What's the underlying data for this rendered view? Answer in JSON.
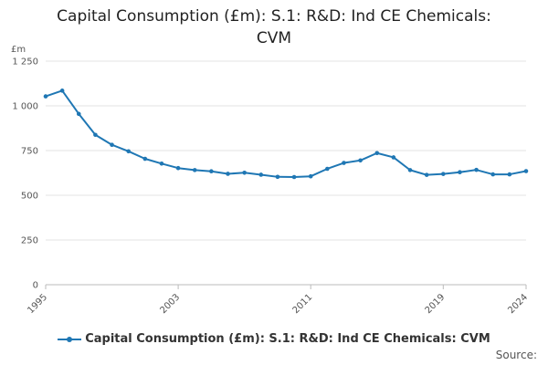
{
  "chart_data": {
    "type": "line",
    "title": "Capital Consumption (£m): S.1: R&D: Ind CE Chemicals: CVM",
    "title_lines": [
      "Capital Consumption (£m): S.1: R&D: Ind CE Chemicals:",
      "CVM"
    ],
    "ylabel": "£m",
    "xlabel": "",
    "ylim": [
      0,
      1250
    ],
    "xlim": [
      1995,
      2024
    ],
    "y_ticks": [
      0,
      250,
      500,
      750,
      1000,
      1250
    ],
    "y_tick_labels": [
      "0",
      "250",
      "500",
      "750",
      "1 000",
      "1 250"
    ],
    "x_ticks": [
      1995,
      2003,
      2011,
      2019,
      2024
    ],
    "x_tick_labels": [
      "1995",
      "2003",
      "2011",
      "2019",
      "2024"
    ],
    "grid": true,
    "legend_position": "bottom",
    "series": [
      {
        "name": "Capital Consumption (£m): S.1: R&D: Ind CE Chemicals: CVM",
        "color": "#1f77b4",
        "x": [
          1995,
          1996,
          1997,
          1998,
          1999,
          2000,
          2001,
          2002,
          2003,
          2004,
          2005,
          2006,
          2007,
          2008,
          2009,
          2010,
          2011,
          2012,
          2013,
          2014,
          2015,
          2016,
          2017,
          2018,
          2019,
          2020,
          2021,
          2022,
          2023,
          2024
        ],
        "values": [
          1053,
          1085,
          955,
          838,
          782,
          746,
          704,
          677,
          652,
          641,
          634,
          620,
          626,
          615,
          603,
          602,
          606,
          648,
          681,
          695,
          736,
          712,
          641,
          614,
          619,
          629,
          642,
          617,
          617,
          635
        ]
      }
    ]
  },
  "legend": {
    "label": "Capital Consumption (£m): S.1: R&D: Ind CE Chemicals: CVM"
  },
  "source": {
    "label": "Source:"
  }
}
